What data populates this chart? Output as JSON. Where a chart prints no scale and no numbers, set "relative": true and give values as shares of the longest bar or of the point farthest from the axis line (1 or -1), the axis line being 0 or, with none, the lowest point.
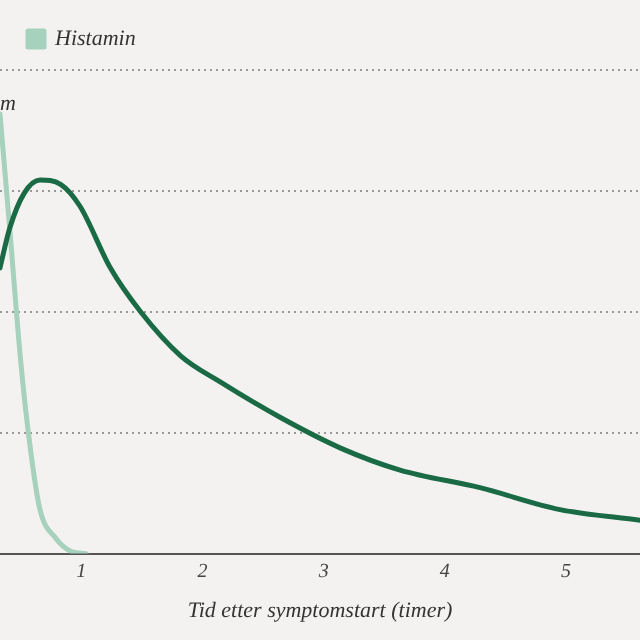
{
  "chart_data": {
    "type": "line",
    "relative": true,
    "xlabel": "Tid etter symptomstart (timer)",
    "ylabel": "m",
    "xlim": [
      0.33,
      5.61
    ],
    "xticks": [
      1,
      2,
      3,
      4,
      5
    ],
    "grid": "y",
    "legend": "top left",
    "marker": "none",
    "line_style": "solid",
    "series": [
      {
        "color": "#1a6b45",
        "x": [
          0.33,
          0.41,
          0.53,
          0.66,
          0.83,
          0.99,
          1.24,
          1.49,
          1.82,
          2.15,
          2.64,
          3.14,
          3.63,
          4.29,
          4.95,
          5.61
        ],
        "values": [
          0.65,
          0.74,
          0.82,
          0.85,
          0.84,
          0.79,
          0.65,
          0.55,
          0.45,
          0.39,
          0.31,
          0.24,
          0.19,
          0.15,
          0.1,
          0.076
        ]
      },
      {
        "name": "Histamin",
        "color": "#a6d1bc",
        "x": [
          0.33,
          0.41,
          0.5,
          0.58,
          0.66,
          0.79,
          0.91,
          1.04
        ],
        "values": [
          1,
          0.74,
          0.44,
          0.24,
          0.1,
          0.035,
          0.006,
          0
        ]
      }
    ]
  }
}
